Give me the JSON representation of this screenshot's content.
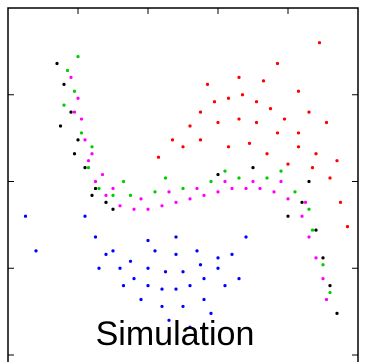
{
  "chart_data": {
    "type": "scatter",
    "title": "Simulation",
    "xlim": [
      0,
      100
    ],
    "ylim": [
      0,
      100
    ],
    "xticks": [
      0,
      20,
      40,
      60,
      80,
      100
    ],
    "yticks": [
      0,
      25,
      50,
      75,
      100
    ],
    "series": [
      {
        "color": "#ff0000",
        "x": [
          43,
          47,
          52,
          55,
          59,
          63,
          67,
          71,
          75,
          79,
          83,
          88,
          92,
          95,
          55,
          60,
          66,
          71,
          77,
          83,
          87,
          69,
          63,
          74,
          80,
          66,
          77,
          89,
          83,
          91,
          57,
          97,
          50,
          73,
          86,
          94
        ],
        "y": [
          57,
          62,
          66,
          70,
          73,
          74,
          75,
          73,
          71,
          68,
          64,
          58,
          51,
          44,
          62,
          67,
          68,
          67,
          64,
          60,
          54,
          61,
          60,
          58,
          55,
          80,
          84,
          90,
          76,
          67,
          78,
          37,
          60,
          79,
          70,
          56
        ]
      },
      {
        "color": "#0000ff",
        "x": [
          22,
          25,
          28,
          32,
          36,
          40,
          44,
          48,
          52,
          56,
          60,
          64,
          68,
          30,
          35,
          40,
          45,
          50,
          55,
          60,
          38,
          44,
          50,
          56,
          42,
          48,
          54,
          33,
          62,
          46,
          52,
          58,
          26,
          66,
          40,
          48,
          5,
          8
        ],
        "y": [
          40,
          34,
          29,
          25,
          22,
          20,
          19,
          19,
          20,
          22,
          25,
          29,
          34,
          30,
          27,
          25,
          24,
          24,
          26,
          28,
          16,
          14,
          14,
          16,
          30,
          29,
          30,
          20,
          20,
          10,
          8,
          12,
          25,
          22,
          33,
          34,
          40,
          30
        ]
      },
      {
        "color": "#00cc00",
        "x": [
          17,
          19,
          21,
          23,
          26,
          30,
          35,
          42,
          50,
          58,
          66,
          74,
          82,
          87,
          90,
          92,
          16,
          24,
          33,
          45,
          62,
          78,
          86,
          20,
          28
        ],
        "y": [
          82,
          76,
          64,
          54,
          48,
          46,
          46,
          47,
          48,
          50,
          51,
          51,
          47,
          36,
          26,
          18,
          72,
          60,
          50,
          51,
          53,
          53,
          42,
          86,
          44
        ]
      },
      {
        "color": "#000000",
        "x": [
          14,
          16,
          18,
          20,
          22,
          25,
          28,
          15,
          19,
          24,
          84,
          88,
          90,
          92,
          94,
          80,
          86,
          60,
          70,
          30
        ],
        "y": [
          84,
          78,
          70,
          62,
          54,
          48,
          44,
          66,
          58,
          46,
          44,
          36,
          28,
          20,
          12,
          40,
          50,
          52,
          54,
          42
        ]
      },
      {
        "color": "#ff00ff",
        "x": [
          18,
          20,
          21,
          22,
          23,
          25,
          28,
          32,
          36,
          40,
          44,
          48,
          52,
          56,
          60,
          64,
          68,
          72,
          76,
          80,
          84,
          86,
          88,
          90,
          91,
          24,
          30,
          38,
          46,
          54,
          62,
          70,
          78,
          85,
          19,
          27
        ],
        "y": [
          80,
          74,
          68,
          62,
          56,
          50,
          46,
          43,
          42,
          42,
          43,
          44,
          45,
          46,
          47,
          48,
          48,
          48,
          47,
          45,
          40,
          34,
          28,
          22,
          16,
          58,
          48,
          45,
          47,
          48,
          50,
          50,
          50,
          44,
          70,
          52
        ]
      }
    ]
  }
}
